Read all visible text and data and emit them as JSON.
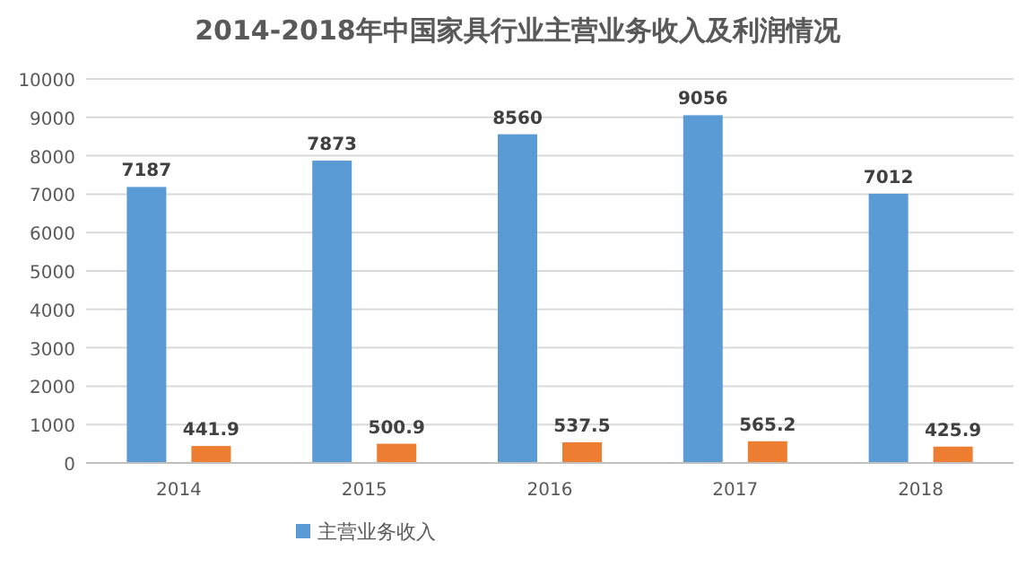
{
  "chart_data": {
    "type": "bar",
    "title": "2014-2018年中国家具行业主营业务收入及利润情况",
    "categories": [
      "2014",
      "2015",
      "2016",
      "2017",
      "2018"
    ],
    "series": [
      {
        "name": "主营业务收入",
        "color": "#5b9bd5",
        "values": [
          7187,
          7873,
          8560,
          9056,
          7012
        ]
      },
      {
        "color": "#ed7d31",
        "values": [
          441.9,
          500.9,
          537.5,
          565.2,
          425.9
        ]
      }
    ],
    "ylim": [
      0,
      10000
    ],
    "yticks": [
      0,
      1000,
      2000,
      3000,
      4000,
      5000,
      6000,
      7000,
      8000,
      9000,
      10000
    ],
    "grid": "y",
    "legend": "bottom",
    "data_labels": true
  }
}
